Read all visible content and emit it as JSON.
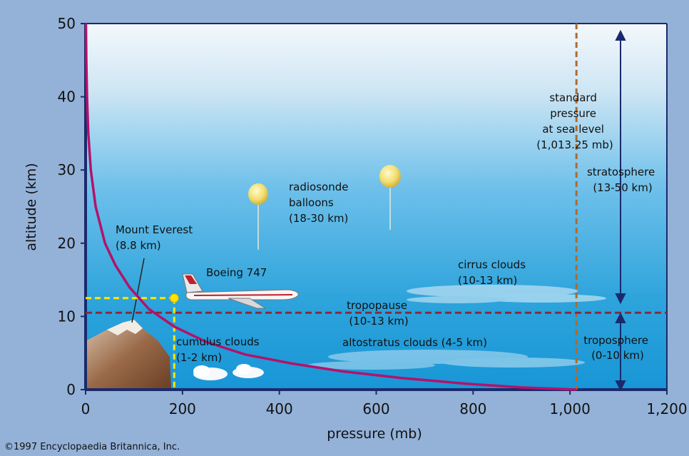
{
  "chart_data": {
    "type": "line",
    "xlabel": "pressure (mb)",
    "ylabel": "altitude (km)",
    "xlim": [
      0,
      1200
    ],
    "ylim": [
      0,
      50
    ],
    "x_ticks": [
      "0",
      "200",
      "400",
      "600",
      "800",
      "1,000",
      "1,200"
    ],
    "y_ticks": [
      "0",
      "10",
      "20",
      "30",
      "40",
      "50"
    ],
    "series": [
      {
        "x": [
          0.8,
          1.5,
          2.9,
          5.6,
          10.8,
          20.8,
          40.0,
          61.5,
          90.5,
          130.6,
          183.4,
          249.6,
          329.7,
          423.6,
          530.2,
          650.7,
          786.7,
          899.0,
          1013.25
        ],
        "y": [
          50,
          45,
          40,
          35,
          30,
          25,
          20,
          17,
          14,
          11,
          8.6,
          6.5,
          4.8,
          3.6,
          2.5,
          1.6,
          0.8,
          0.3,
          0
        ]
      }
    ],
    "reference_lines": {
      "standard_pressure_x": 1013.25,
      "tropopause_y": 10.5,
      "everest": {
        "x": 183,
        "y": 8.8
      }
    },
    "colors": {
      "curve": "#b4126a",
      "standard_line": "#b06a2c",
      "tropopause_line": "#8a2a3a",
      "everest_marker": "#ffe600",
      "arrows": "#1a2a6c"
    },
    "annotations": {
      "standard_pressure": [
        "standard",
        "pressure",
        "at sea level",
        "(1,013.25 mb)"
      ],
      "stratosphere": [
        "stratosphere",
        "(13-50 km)"
      ],
      "troposphere": [
        "troposphere",
        "(0-10 km)"
      ],
      "radiosonde": [
        "radiosonde",
        "balloons",
        "(18-30 km)"
      ],
      "everest": [
        "Mount Everest",
        "(8.8 km)"
      ],
      "boeing": "Boeing 747",
      "cirrus": [
        "cirrus clouds",
        "(10-13 km)"
      ],
      "tropopause": [
        "tropopause",
        "(10-13 km)"
      ],
      "cumulus": [
        "cumulus clouds",
        "(1-2 km)"
      ],
      "altostratus": "altostratus clouds (4-5 km)"
    }
  },
  "footer": {
    "copyright": "©1997 Encyclopaedia Britannica, Inc."
  }
}
